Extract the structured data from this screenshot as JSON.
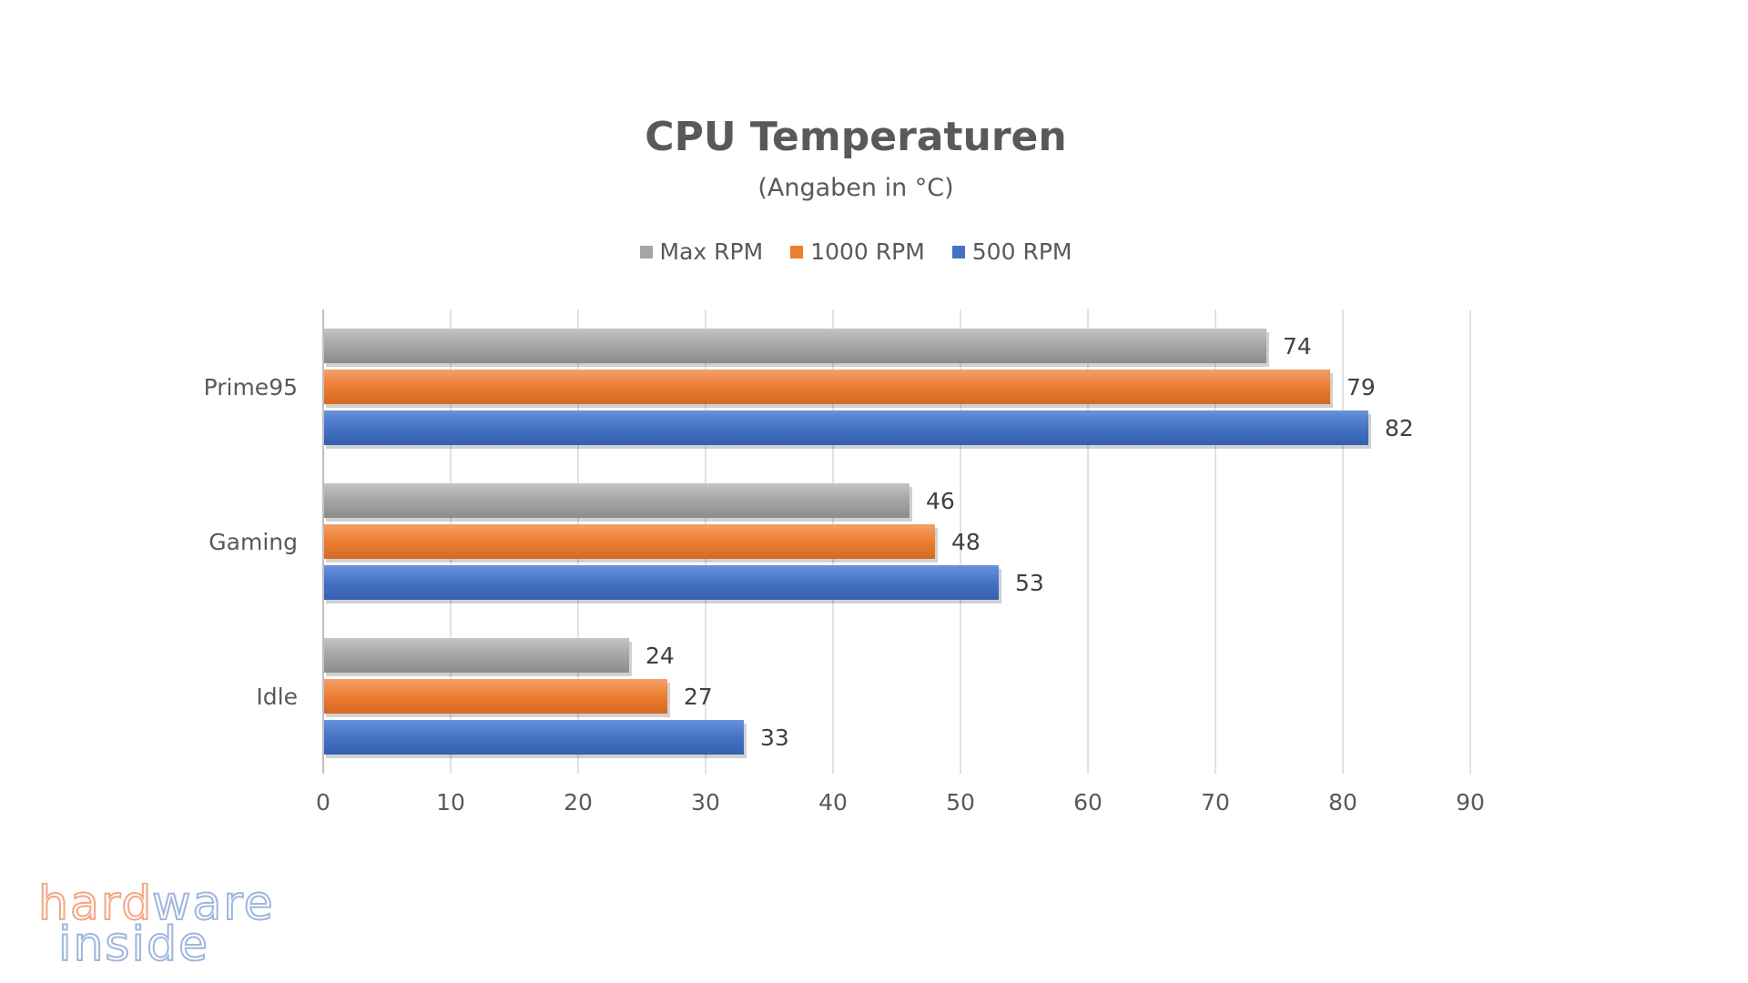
{
  "chart_data": {
    "type": "bar",
    "orientation": "horizontal",
    "title": "CPU Temperaturen",
    "subtitle": "(Angaben in °C)",
    "categories": [
      "Prime95",
      "Gaming",
      "Idle"
    ],
    "series": [
      {
        "name": "Max RPM",
        "color": "#a5a5a5",
        "values": [
          74,
          46,
          24
        ]
      },
      {
        "name": "1000 RPM",
        "color": "#ed7d31",
        "values": [
          79,
          48,
          27
        ]
      },
      {
        "name": "500 RPM",
        "color": "#4472c4",
        "values": [
          82,
          53,
          33
        ]
      }
    ],
    "xlim": [
      0,
      90
    ],
    "xticks": [
      0,
      10,
      20,
      30,
      40,
      50,
      60,
      70,
      80,
      90
    ],
    "grid": true,
    "legend_position": "top",
    "data_labels": true
  },
  "watermark": {
    "line1": "hardware",
    "line2": "inside",
    "colors": [
      "#f4a582",
      "#9fb5dd"
    ]
  }
}
